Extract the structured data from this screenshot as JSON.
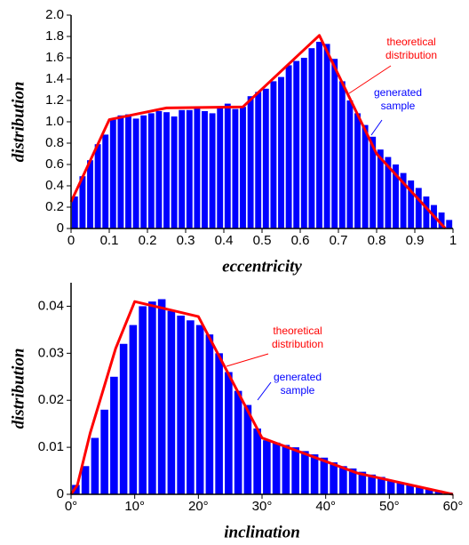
{
  "chart_data": [
    {
      "type": "histogram",
      "xlabel": "eccentricity",
      "ylabel": "distribution",
      "bins": [
        0,
        0.02,
        0.04,
        0.06,
        0.08,
        0.1,
        0.12,
        0.14,
        0.16,
        0.18,
        0.2,
        0.22,
        0.24,
        0.26,
        0.28,
        0.3,
        0.32,
        0.34,
        0.36,
        0.38,
        0.4,
        0.42,
        0.44,
        0.46,
        0.48,
        0.5,
        0.52,
        0.54,
        0.56,
        0.58,
        0.6,
        0.62,
        0.64,
        0.66,
        0.68,
        0.7,
        0.72,
        0.74,
        0.76,
        0.78,
        0.8,
        0.82,
        0.84,
        0.86,
        0.88,
        0.9,
        0.92,
        0.94,
        0.96,
        0.98,
        1
      ],
      "values": [
        0.3,
        0.49,
        0.64,
        0.79,
        0.88,
        1.02,
        1.06,
        1.07,
        1.03,
        1.06,
        1.08,
        1.1,
        1.09,
        1.05,
        1.11,
        1.11,
        1.13,
        1.1,
        1.08,
        1.13,
        1.17,
        1.12,
        1.14,
        1.24,
        1.28,
        1.31,
        1.38,
        1.42,
        1.53,
        1.57,
        1.6,
        1.69,
        1.75,
        1.73,
        1.59,
        1.38,
        1.2,
        1.08,
        0.97,
        0.86,
        0.74,
        0.67,
        0.6,
        0.52,
        0.45,
        0.38,
        0.3,
        0.22,
        0.15,
        0.08
      ],
      "color": "#0000ff",
      "line": {
        "x": [
          0,
          0.1,
          0.25,
          0.45,
          0.65,
          0.8,
          0.98
        ],
        "y": [
          0.25,
          1.02,
          1.13,
          1.14,
          1.81,
          0.7,
          0
        ],
        "color": "#ff0000"
      },
      "annotations": [
        {
          "lines": [
            "theoretical",
            "distribution"
          ],
          "color": "#ff0000"
        },
        {
          "lines": [
            "generated",
            "sample"
          ],
          "color": "#0000ff"
        }
      ],
      "xlim": [
        0,
        1
      ],
      "xticks": [
        0,
        0.1,
        0.2,
        0.3,
        0.4,
        0.5,
        0.6,
        0.7,
        0.8,
        0.9,
        1
      ],
      "ylim": [
        0,
        2
      ],
      "yticks": [
        0,
        0.2,
        0.4,
        0.6,
        0.8,
        {
          "value": 1,
          "label": "1.0"
        },
        1.2,
        1.4,
        1.6,
        1.8,
        {
          "value": 2,
          "label": "2.0"
        }
      ]
    },
    {
      "type": "histogram",
      "xlabel": "inclination",
      "ylabel": "distribution",
      "bins": [
        0,
        1.5,
        3,
        4.5,
        6,
        7.5,
        9,
        10.5,
        12,
        13.5,
        15,
        16.5,
        18,
        19.5,
        21,
        22.5,
        24,
        25.5,
        27,
        28.5,
        30,
        31.5,
        33,
        34.5,
        36,
        37.5,
        39,
        40.5,
        42,
        43.5,
        45,
        46.5,
        48,
        49.5,
        51,
        52.5,
        54,
        55.5,
        57,
        58.5,
        60
      ],
      "values": [
        0.002,
        0.006,
        0.012,
        0.018,
        0.025,
        0.032,
        0.036,
        0.04,
        0.041,
        0.0415,
        0.039,
        0.038,
        0.037,
        0.036,
        0.034,
        0.03,
        0.026,
        0.022,
        0.019,
        0.014,
        0.0115,
        0.011,
        0.0105,
        0.01,
        0.0092,
        0.0085,
        0.0078,
        0.0068,
        0.006,
        0.0055,
        0.0048,
        0.0042,
        0.0037,
        0.003,
        0.0025,
        0.002,
        0.0016,
        0.0011,
        0.0008,
        0.0004
      ],
      "color": "#0000ff",
      "line": {
        "x": [
          0,
          1,
          3,
          5,
          7,
          10,
          20,
          30,
          45,
          60
        ],
        "y": [
          0,
          0.002,
          0.013,
          0.022,
          0.031,
          0.041,
          0.0378,
          0.012,
          0.0045,
          0
        ],
        "color": "#ff0000"
      },
      "annotations": [
        {
          "lines": [
            "theoretical",
            "distribution"
          ],
          "color": "#ff0000"
        },
        {
          "lines": [
            "generated",
            "sample"
          ],
          "color": "#0000ff"
        }
      ],
      "xlim": [
        0,
        60
      ],
      "xticks": [
        {
          "value": 0,
          "label": "0°"
        },
        {
          "value": 10,
          "label": "10°"
        },
        {
          "value": 20,
          "label": "20°"
        },
        {
          "value": 30,
          "label": "30°"
        },
        {
          "value": 40,
          "label": "40°"
        },
        {
          "value": 50,
          "label": "50°"
        },
        {
          "value": 60,
          "label": "60°"
        }
      ],
      "ylim": [
        0,
        0.045
      ],
      "yticks": [
        0,
        0.01,
        0.02,
        0.03,
        0.04
      ]
    }
  ]
}
